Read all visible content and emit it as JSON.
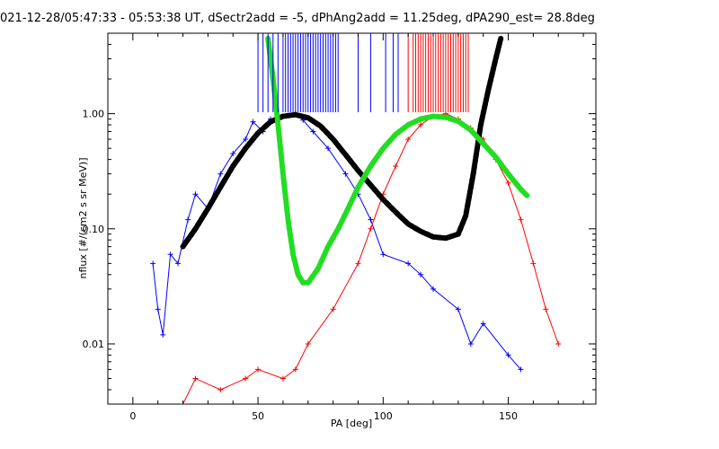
{
  "chart_data": {
    "type": "line",
    "title": "021-12-28/05:47:33 - 05:53:38 UT, dSectr2add = -5, dPhAng2add = 11.25deg, dPA290_est=  28.8deg",
    "xlabel": "PA [deg]",
    "ylabel": "nflux [#/(cm2 s sr MeV)]",
    "xlim": [
      -10,
      185
    ],
    "ylim": [
      0.003,
      5.0
    ],
    "yscale": "log",
    "grid": false,
    "x_ticks": [
      0,
      50,
      100,
      150
    ],
    "x_tick_labels": [
      "0",
      "50",
      "100",
      "150"
    ],
    "y_ticks": [
      1.0,
      0.1,
      0.01
    ],
    "y_tick_labels": [
      "1.00",
      "0.10",
      "0.01"
    ],
    "colors": {
      "blue": "#0000ff",
      "red": "#ff0000",
      "black": "#000000",
      "green": "#22dd22"
    },
    "series": [
      {
        "color": "blue",
        "marker": "plus",
        "x": [
          8,
          10,
          12,
          15,
          18,
          22,
          25,
          30,
          35,
          40,
          45,
          48,
          52,
          55,
          60,
          65,
          68,
          72,
          78,
          85,
          90,
          95,
          100,
          110,
          115,
          120,
          130,
          135,
          140,
          150,
          155
        ],
        "y": [
          0.05,
          0.02,
          0.012,
          0.06,
          0.05,
          0.12,
          0.2,
          0.15,
          0.3,
          0.45,
          0.6,
          0.85,
          0.7,
          0.9,
          0.95,
          1.0,
          0.88,
          0.7,
          0.5,
          0.3,
          0.2,
          0.12,
          0.06,
          0.05,
          0.04,
          0.03,
          0.02,
          0.01,
          0.015,
          0.008,
          0.006
        ]
      },
      {
        "color": "red",
        "marker": "plus",
        "x": [
          20,
          25,
          35,
          45,
          50,
          60,
          65,
          70,
          80,
          90,
          95,
          100,
          105,
          110,
          115,
          120,
          125,
          130,
          135,
          140,
          145,
          150,
          155,
          160,
          165,
          170
        ],
        "y": [
          0.003,
          0.005,
          0.004,
          0.005,
          0.006,
          0.005,
          0.006,
          0.01,
          0.02,
          0.05,
          0.1,
          0.2,
          0.35,
          0.6,
          0.8,
          0.95,
          1.0,
          0.9,
          0.75,
          0.6,
          0.4,
          0.25,
          0.12,
          0.05,
          0.02,
          0.01
        ]
      },
      {
        "color": "black",
        "style": "thick-dashed",
        "x": [
          20,
          25,
          30,
          35,
          40,
          45,
          50,
          55,
          60,
          65,
          70,
          75,
          80,
          85,
          90,
          95,
          100,
          105,
          110,
          115,
          120,
          125,
          130,
          133,
          136,
          139,
          142,
          145,
          147
        ],
        "y": [
          0.07,
          0.1,
          0.15,
          0.23,
          0.35,
          0.5,
          0.68,
          0.85,
          0.95,
          0.98,
          0.92,
          0.78,
          0.6,
          0.44,
          0.32,
          0.24,
          0.18,
          0.14,
          0.11,
          0.095,
          0.085,
          0.083,
          0.09,
          0.13,
          0.3,
          0.8,
          1.6,
          3.0,
          4.5
        ]
      },
      {
        "color": "green",
        "style": "thick-dashed",
        "x": [
          54,
          56,
          58,
          60,
          62,
          64,
          66,
          68,
          70,
          74,
          78,
          82,
          86,
          90,
          95,
          100,
          105,
          110,
          115,
          120,
          125,
          130,
          135,
          140,
          145,
          150,
          155,
          158
        ],
        "y": [
          4.5,
          2.0,
          0.8,
          0.3,
          0.12,
          0.06,
          0.04,
          0.034,
          0.034,
          0.045,
          0.07,
          0.1,
          0.15,
          0.23,
          0.35,
          0.5,
          0.66,
          0.8,
          0.9,
          0.95,
          0.93,
          0.86,
          0.72,
          0.55,
          0.42,
          0.3,
          0.22,
          0.19
        ]
      }
    ],
    "tick_marks": [
      {
        "color": "blue",
        "x": [
          50,
          52,
          54,
          56,
          58,
          60,
          61,
          62,
          63,
          64,
          65,
          66,
          67,
          68,
          69,
          70,
          71,
          72,
          73,
          74,
          75,
          76,
          77,
          78,
          79,
          80,
          81,
          82,
          90,
          95,
          101,
          104,
          106
        ]
      },
      {
        "color": "red",
        "x": [
          110,
          112,
          113,
          114,
          115,
          116,
          117,
          118,
          119,
          120,
          121,
          122,
          123,
          124,
          125,
          126,
          127,
          128,
          129,
          130,
          131,
          132,
          133,
          134
        ]
      }
    ]
  }
}
